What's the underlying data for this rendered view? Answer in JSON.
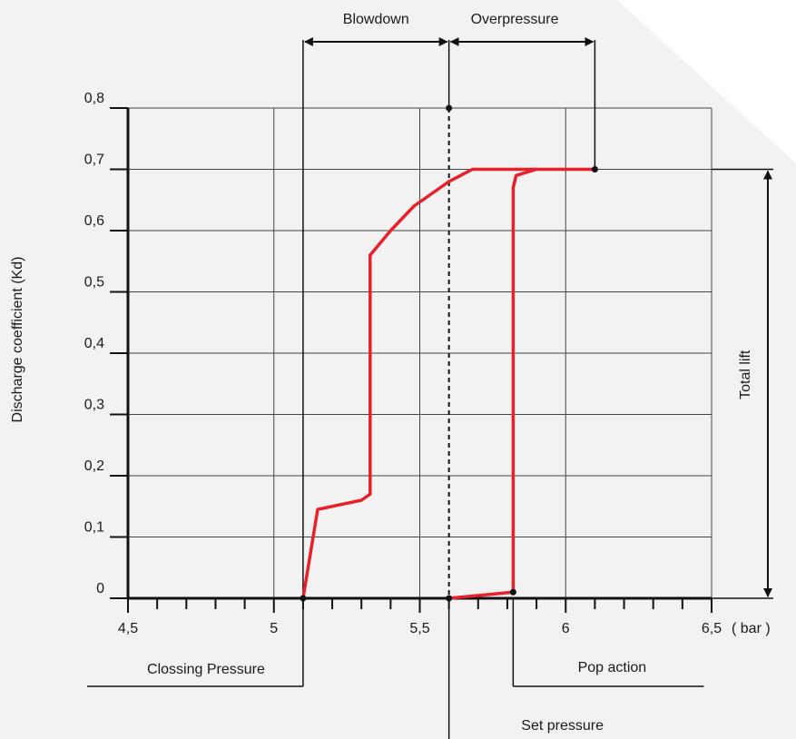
{
  "chart_data": {
    "type": "line",
    "xlabel": "( bar )",
    "ylabel": "Discharge coefficient   (Kd)",
    "xlim": [
      4.5,
      6.5
    ],
    "ylim": [
      0,
      0.8
    ],
    "x_ticks": [
      {
        "value": 4.5,
        "label": "4,5"
      },
      {
        "value": 5,
        "label": "5"
      },
      {
        "value": 5.5,
        "label": "5,5"
      },
      {
        "value": 6,
        "label": "6"
      },
      {
        "value": 6.5,
        "label": "6,5"
      }
    ],
    "y_ticks": [
      {
        "value": 0,
        "label": "0"
      },
      {
        "value": 0.1,
        "label": "0,1"
      },
      {
        "value": 0.2,
        "label": "0,2"
      },
      {
        "value": 0.3,
        "label": "0,3"
      },
      {
        "value": 0.4,
        "label": "0,4"
      },
      {
        "value": 0.5,
        "label": "0,5"
      },
      {
        "value": 0.6,
        "label": "0,6"
      },
      {
        "value": 0.7,
        "label": "0,7"
      },
      {
        "value": 0.8,
        "label": "0,8"
      }
    ],
    "grid": true,
    "series": [
      {
        "color": "#e8202a",
        "points": [
          [
            5.1,
            0
          ],
          [
            5.15,
            0.145
          ],
          [
            5.3,
            0.16
          ],
          [
            5.33,
            0.17
          ],
          [
            5.33,
            0.56
          ],
          [
            5.4,
            0.6
          ],
          [
            5.48,
            0.64
          ],
          [
            5.6,
            0.68
          ],
          [
            5.68,
            0.7
          ],
          [
            5.95,
            0.7
          ],
          [
            6.1,
            0.7
          ],
          [
            5.9,
            0.7
          ],
          [
            5.83,
            0.69
          ],
          [
            5.82,
            0.67
          ],
          [
            5.82,
            0.01
          ],
          [
            5.6,
            0
          ]
        ]
      }
    ],
    "markers": [
      {
        "x": 5.1,
        "y": 0
      },
      {
        "x": 5.6,
        "y": 0
      },
      {
        "x": 5.82,
        "y": 0.01
      },
      {
        "x": 6.1,
        "y": 0.7
      },
      {
        "x": 5.6,
        "y": 0.8
      }
    ],
    "annotations": {
      "blowdown": "Blowdown",
      "overpressure": "Overpressure",
      "total_lift": "Total lift",
      "closing_pressure": "Clossing Pressure",
      "pop_action": "Pop action",
      "set_pressure": "Set pressure"
    },
    "annotation_x": {
      "closing": 5.1,
      "set": 5.6,
      "pop": 5.82,
      "overpressure_end": 6.1
    }
  }
}
